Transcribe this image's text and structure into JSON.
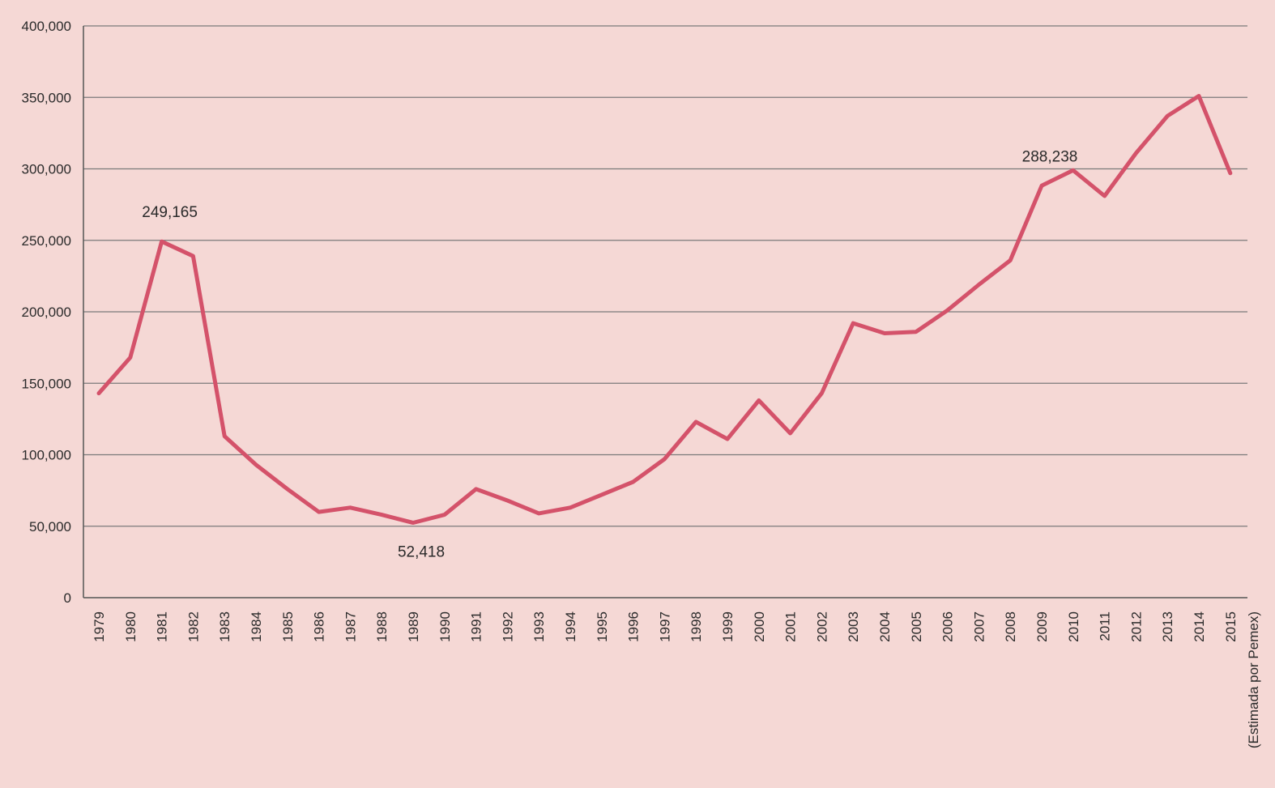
{
  "chart_data": {
    "type": "line",
    "title": "",
    "xlabel": "",
    "ylabel": "",
    "ylim": [
      0,
      400000
    ],
    "yticks": [
      0,
      50000,
      100000,
      150000,
      200000,
      250000,
      300000,
      350000,
      400000
    ],
    "ytick_labels": [
      "0",
      "50,000",
      "100,000",
      "150,000",
      "200,000",
      "250,000",
      "300,000",
      "350,000",
      "400,000"
    ],
    "grid": true,
    "legend": "none",
    "categories": [
      "1979",
      "1980",
      "1981",
      "1982",
      "1983",
      "1984",
      "1985",
      "1986",
      "1987",
      "1988",
      "1989",
      "1990",
      "1991",
      "1992",
      "1993",
      "1994",
      "1995",
      "1996",
      "1997",
      "1998",
      "1999",
      "2000",
      "2001",
      "2002",
      "2003",
      "2004",
      "2005",
      "2006",
      "2007",
      "2008",
      "2009",
      "2010",
      "2011",
      "2012",
      "2013",
      "2014",
      "2015"
    ],
    "last_category_note": "(Estimada por Pemex)",
    "series": [
      {
        "color": "#d4526a",
        "values": [
          143000,
          168000,
          249165,
          239000,
          113000,
          93000,
          76000,
          60000,
          63000,
          58000,
          52418,
          58000,
          76000,
          68000,
          59000,
          63000,
          72000,
          81000,
          97000,
          123000,
          111000,
          138000,
          115000,
          143000,
          192000,
          185000,
          186000,
          201000,
          219000,
          236000,
          288238,
          299000,
          281000,
          311000,
          337000,
          351000,
          297000
        ]
      }
    ],
    "annotations": [
      {
        "category": "1981",
        "value": 249165,
        "text": "249,165"
      },
      {
        "category": "1989",
        "value": 52418,
        "text": "52,418"
      },
      {
        "category": "2009",
        "value": 288238,
        "text": "288,238"
      }
    ]
  }
}
